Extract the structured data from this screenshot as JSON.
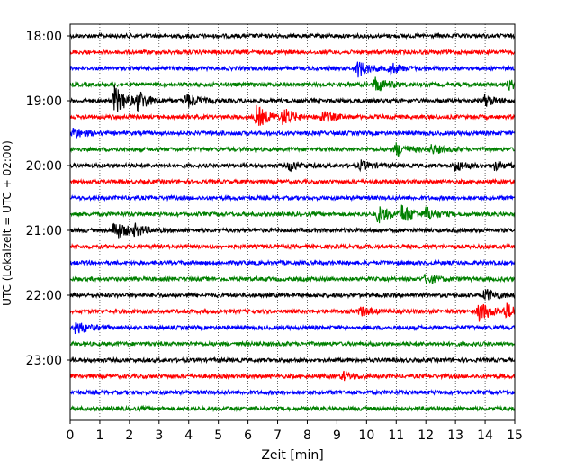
{
  "chart_data": {
    "type": "line",
    "subtype": "helicorder",
    "title": "",
    "xlabel": "Zeit  [min]",
    "ylabel": "UTC (Lokalzeit = UTC + 02:00)",
    "xlim": [
      0,
      15
    ],
    "x_ticks": [
      0,
      1,
      2,
      3,
      4,
      5,
      6,
      7,
      8,
      9,
      10,
      11,
      12,
      13,
      14,
      15
    ],
    "x_tick_labels": [
      "0",
      "1",
      "2",
      "3",
      "4",
      "5",
      "6",
      "7",
      "8",
      "9",
      "10",
      "11",
      "12",
      "13",
      "14",
      "15"
    ],
    "y_tick_labels": [
      "18:00",
      "19:00",
      "20:00",
      "21:00",
      "22:00",
      "23:00"
    ],
    "trace_interval_minutes": 15,
    "trace_colors": [
      "#000000",
      "#ff0000",
      "#0000ff",
      "#008000"
    ],
    "grid": "vertical dotted at each minute",
    "traces": [
      {
        "start": "18:00",
        "color": "#000000",
        "events": []
      },
      {
        "start": "18:15",
        "color": "#ff0000",
        "events": []
      },
      {
        "start": "18:30",
        "color": "#0000ff",
        "events": [
          {
            "t": 9.7,
            "amp": 0.55
          },
          {
            "t": 10.8,
            "amp": 0.35
          }
        ]
      },
      {
        "start": "18:45",
        "color": "#008000",
        "events": [
          {
            "t": 10.3,
            "amp": 0.5
          },
          {
            "t": 14.8,
            "amp": 0.3
          }
        ]
      },
      {
        "start": "19:00",
        "color": "#000000",
        "events": [
          {
            "t": 1.5,
            "amp": 1.0
          },
          {
            "t": 2.3,
            "amp": 0.6
          },
          {
            "t": 3.9,
            "amp": 0.5
          },
          {
            "t": 14.0,
            "amp": 0.35
          }
        ]
      },
      {
        "start": "19:15",
        "color": "#ff0000",
        "events": [
          {
            "t": 6.3,
            "amp": 0.75
          },
          {
            "t": 7.2,
            "amp": 0.55
          },
          {
            "t": 8.5,
            "amp": 0.4
          }
        ]
      },
      {
        "start": "19:30",
        "color": "#0000ff",
        "events": [
          {
            "t": 0.1,
            "amp": 0.35
          }
        ]
      },
      {
        "start": "19:45",
        "color": "#008000",
        "events": [
          {
            "t": 11.0,
            "amp": 0.45
          },
          {
            "t": 12.2,
            "amp": 0.3
          }
        ]
      },
      {
        "start": "20:00",
        "color": "#000000",
        "events": [
          {
            "t": 7.4,
            "amp": 0.3
          },
          {
            "t": 9.8,
            "amp": 0.3
          },
          {
            "t": 13.0,
            "amp": 0.35
          },
          {
            "t": 14.3,
            "amp": 0.3
          }
        ]
      },
      {
        "start": "20:15",
        "color": "#ff0000",
        "events": []
      },
      {
        "start": "20:30",
        "color": "#0000ff",
        "events": []
      },
      {
        "start": "20:45",
        "color": "#008000",
        "events": [
          {
            "t": 10.4,
            "amp": 0.6
          },
          {
            "t": 11.2,
            "amp": 0.6
          },
          {
            "t": 12.0,
            "amp": 0.4
          }
        ]
      },
      {
        "start": "21:00",
        "color": "#000000",
        "events": [
          {
            "t": 1.5,
            "amp": 0.7
          },
          {
            "t": 2.2,
            "amp": 0.3
          }
        ]
      },
      {
        "start": "21:15",
        "color": "#ff0000",
        "events": []
      },
      {
        "start": "21:30",
        "color": "#0000ff",
        "events": []
      },
      {
        "start": "21:45",
        "color": "#008000",
        "events": [
          {
            "t": 12.0,
            "amp": 0.3
          }
        ]
      },
      {
        "start": "22:00",
        "color": "#000000",
        "events": [
          {
            "t": 14.0,
            "amp": 0.4
          }
        ]
      },
      {
        "start": "22:15",
        "color": "#ff0000",
        "events": [
          {
            "t": 9.8,
            "amp": 0.3
          },
          {
            "t": 13.8,
            "amp": 0.7
          },
          {
            "t": 14.7,
            "amp": 0.5
          }
        ]
      },
      {
        "start": "22:30",
        "color": "#0000ff",
        "events": [
          {
            "t": 0.2,
            "amp": 0.45
          }
        ]
      },
      {
        "start": "22:45",
        "color": "#008000",
        "events": []
      },
      {
        "start": "23:00",
        "color": "#000000",
        "events": []
      },
      {
        "start": "23:15",
        "color": "#ff0000",
        "events": [
          {
            "t": 9.2,
            "amp": 0.3
          }
        ]
      },
      {
        "start": "23:30",
        "color": "#0000ff",
        "events": []
      },
      {
        "start": "23:45",
        "color": "#008000",
        "events": []
      }
    ]
  }
}
